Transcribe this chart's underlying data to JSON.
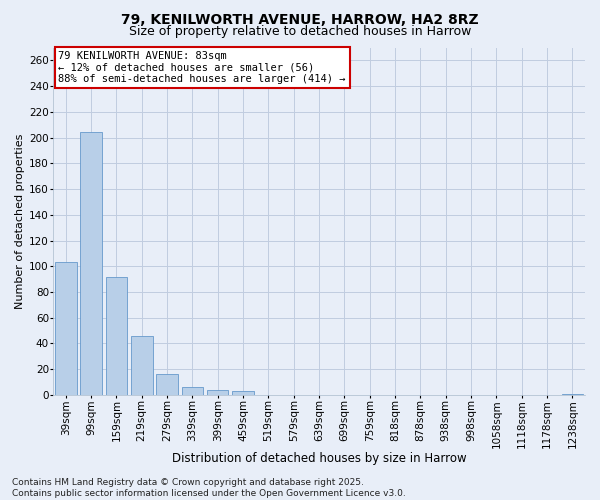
{
  "title1": "79, KENILWORTH AVENUE, HARROW, HA2 8RZ",
  "title2": "Size of property relative to detached houses in Harrow",
  "xlabel": "Distribution of detached houses by size in Harrow",
  "ylabel": "Number of detached properties",
  "categories": [
    "39sqm",
    "99sqm",
    "159sqm",
    "219sqm",
    "279sqm",
    "339sqm",
    "399sqm",
    "459sqm",
    "519sqm",
    "579sqm",
    "639sqm",
    "699sqm",
    "759sqm",
    "818sqm",
    "878sqm",
    "938sqm",
    "998sqm",
    "1058sqm",
    "1118sqm",
    "1178sqm",
    "1238sqm"
  ],
  "values": [
    103,
    204,
    92,
    46,
    16,
    6,
    4,
    3,
    0,
    0,
    0,
    0,
    0,
    0,
    0,
    0,
    0,
    0,
    0,
    0,
    1
  ],
  "bar_color": "#b8cfe8",
  "bar_edge_color": "#6699cc",
  "annotation_line1": "79 KENILWORTH AVENUE: 83sqm",
  "annotation_line2": "← 12% of detached houses are smaller (56)",
  "annotation_line3": "88% of semi-detached houses are larger (414) →",
  "annotation_box_color": "#ffffff",
  "annotation_box_edge_color": "#cc0000",
  "ylim": [
    0,
    270
  ],
  "yticks": [
    0,
    20,
    40,
    60,
    80,
    100,
    120,
    140,
    160,
    180,
    200,
    220,
    240,
    260
  ],
  "bg_color": "#e8eef8",
  "plot_bg_color": "#e8eef8",
  "grid_color": "#c0cce0",
  "footer": "Contains HM Land Registry data © Crown copyright and database right 2025.\nContains public sector information licensed under the Open Government Licence v3.0.",
  "title1_fontsize": 10,
  "title2_fontsize": 9,
  "xlabel_fontsize": 8.5,
  "ylabel_fontsize": 8,
  "tick_fontsize": 7.5,
  "annotation_fontsize": 7.5,
  "footer_fontsize": 6.5
}
